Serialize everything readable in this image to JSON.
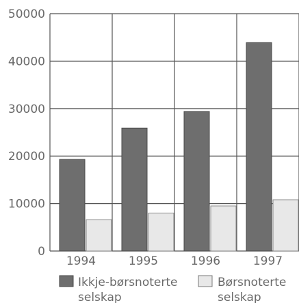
{
  "chart_data": {
    "type": "bar",
    "categories": [
      "1994",
      "1995",
      "1996",
      "1997"
    ],
    "series": [
      {
        "name": "Ikkje-børsnoterte selskap",
        "values": [
          19300,
          25900,
          29400,
          43900
        ]
      },
      {
        "name": "Børsnoterte selskap",
        "values": [
          6600,
          8000,
          9500,
          10800
        ]
      }
    ],
    "y_ticks": [
      "0",
      "10000",
      "20000",
      "30000",
      "40000",
      "50000"
    ],
    "ylim": [
      0,
      50000
    ],
    "grid": true,
    "legend_position": "bottom",
    "legend": [
      {
        "line1": "Ikkje-børsnoterte",
        "line2": "selskap"
      },
      {
        "line1": "Børsnoterte",
        "line2": "selskap"
      }
    ],
    "title": "",
    "xlabel": "",
    "ylabel": ""
  },
  "colors": {
    "series_dark": "#6e6e6e",
    "series_light": "#e8e8e8",
    "grid": "#555555",
    "text": "#6a6a6a"
  }
}
